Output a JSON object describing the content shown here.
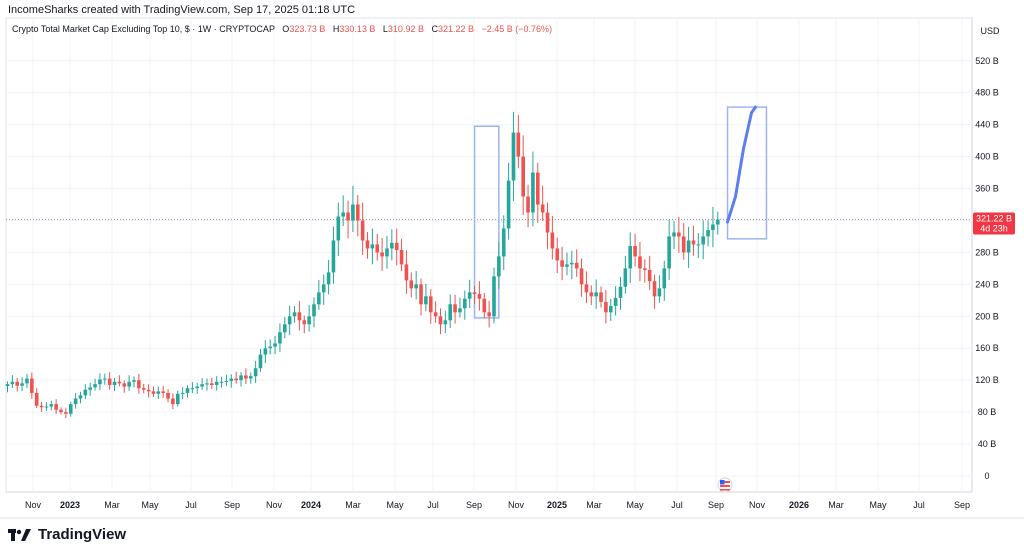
{
  "header": {
    "credit": "IncomeSharks created with TradingView.com, Sep 17, 2025 01:18 UTC"
  },
  "legend": {
    "symbol": "Crypto Total Market Cap Excluding Top 10, $ · 1W · CRYPTOCAP",
    "o_label": "O",
    "o_value": "323.73 B",
    "h_label": "H",
    "h_value": "330.13 B",
    "l_label": "L",
    "l_value": "310.92 B",
    "c_label": "C",
    "c_value": "321.22 B",
    "change": "−2.45 B (−0.76%)"
  },
  "price_axis": {
    "currency_label": "USD",
    "last_price_label": "321.22 B",
    "countdown_label": "4d 23h"
  },
  "footer": {
    "logo_text": "TradingView"
  },
  "colors": {
    "up": "#26a69a",
    "down": "#ef5350",
    "projection": "#5b7ef0",
    "box": "#9db4ee",
    "last_price": "#f23645"
  },
  "chart_data": {
    "type": "candlestick",
    "unit": "B USD",
    "y_ticks": [
      0,
      40,
      80,
      120,
      160,
      200,
      240,
      280,
      320,
      360,
      400,
      440,
      480,
      520
    ],
    "y_tick_labels": [
      "0",
      "40 B",
      "80 B",
      "120 B",
      "160 B",
      "200 B",
      "240 B",
      "280 B",
      "320 B",
      "360 B",
      "400 B",
      "440 B",
      "480 B",
      "520 B"
    ],
    "x_labels": [
      "Nov",
      "2023",
      "Mar",
      "May",
      "Jul",
      "Sep",
      "Nov",
      "2024",
      "Mar",
      "May",
      "Jul",
      "Sep",
      "Nov",
      "2025",
      "Mar",
      "May",
      "Jul",
      "Sep",
      "Nov",
      "2026",
      "Mar",
      "May",
      "Jul",
      "Sep"
    ],
    "x_label_bold": [
      false,
      true,
      false,
      false,
      false,
      false,
      false,
      true,
      false,
      false,
      false,
      false,
      false,
      true,
      false,
      false,
      false,
      false,
      false,
      true,
      false,
      false,
      false,
      false
    ],
    "last_price": 321.22,
    "closes": [
      115,
      118,
      113,
      116,
      122,
      104,
      88,
      86,
      87,
      90,
      83,
      80,
      78,
      90,
      97,
      101,
      108,
      111,
      115,
      121,
      122,
      114,
      118,
      116,
      112,
      118,
      120,
      110,
      108,
      106,
      103,
      106,
      104,
      97,
      90,
      103,
      104,
      110,
      110,
      112,
      115,
      116,
      114,
      118,
      118,
      119,
      122,
      120,
      126,
      122,
      125,
      135,
      152,
      160,
      162,
      166,
      180,
      190,
      200,
      205,
      195,
      190,
      200,
      215,
      230,
      240,
      255,
      295,
      325,
      330,
      320,
      340,
      320,
      295,
      285,
      290,
      280,
      275,
      285,
      292,
      283,
      265,
      245,
      235,
      240,
      215,
      225,
      205,
      200,
      190,
      195,
      215,
      205,
      210,
      222,
      230,
      228,
      222,
      205,
      200,
      250,
      275,
      310,
      370,
      430,
      400,
      350,
      330,
      380,
      340,
      330,
      305,
      285,
      270,
      262,
      265,
      267,
      260,
      240,
      230,
      225,
      230,
      218,
      205,
      213,
      223,
      237,
      260,
      288,
      275,
      260,
      258,
      244,
      225,
      235,
      260,
      300,
      305,
      300,
      280,
      295,
      290,
      290,
      300,
      308,
      315,
      321.22
    ],
    "projection": [
      [
        325,
        318
      ],
      [
        335,
        350
      ],
      [
        345,
        410
      ],
      [
        355,
        455
      ],
      [
        360,
        462
      ]
    ],
    "boxes": [
      {
        "from": 96,
        "to": 101,
        "low": 198,
        "high": 438
      },
      {
        "from": 148,
        "to": 156,
        "low": 297,
        "high": 462
      }
    ]
  }
}
